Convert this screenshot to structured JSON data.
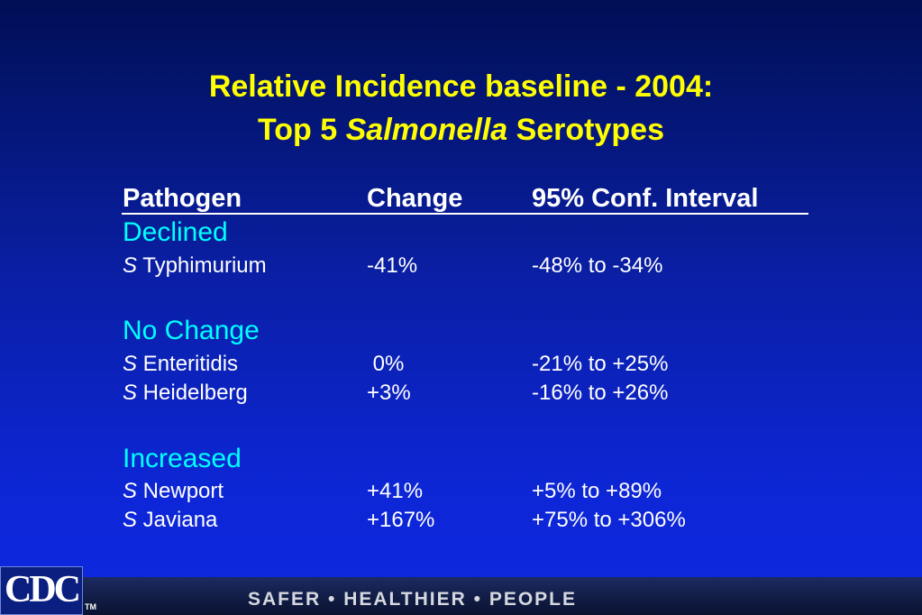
{
  "title": {
    "line1": "Relative Incidence baseline - 2004:",
    "line2_prefix": "Top 5 ",
    "line2_italic": "Salmonella",
    "line2_suffix": " Serotypes"
  },
  "table": {
    "headers": [
      "Pathogen",
      "Change",
      "95% Conf. Interval"
    ],
    "sections": [
      {
        "label": "Declined",
        "rows": [
          {
            "prefix": "S",
            "name": " Typhimurium",
            "change": "-41%",
            "interval": "-48% to -34%"
          }
        ]
      },
      {
        "label": "No Change",
        "rows": [
          {
            "prefix": "S",
            "name": " Enteritidis",
            "change": " 0%",
            "interval": "-21% to +25%"
          },
          {
            "prefix": "S",
            "name": " Heidelberg",
            "change": "+3%",
            "interval": "-16% to +26%"
          }
        ]
      },
      {
        "label": "Increased",
        "rows": [
          {
            "prefix": "S",
            "name": " Newport",
            "change": "+41%",
            "interval": "+5% to +89%"
          },
          {
            "prefix": "S",
            "name": " Javiana",
            "change": "+167%",
            "interval": "+75% to +306%"
          }
        ]
      }
    ]
  },
  "footer": {
    "logo": "CDC",
    "tm": "TM",
    "slogan": "SAFER • HEALTHIER • PEOPLE"
  }
}
